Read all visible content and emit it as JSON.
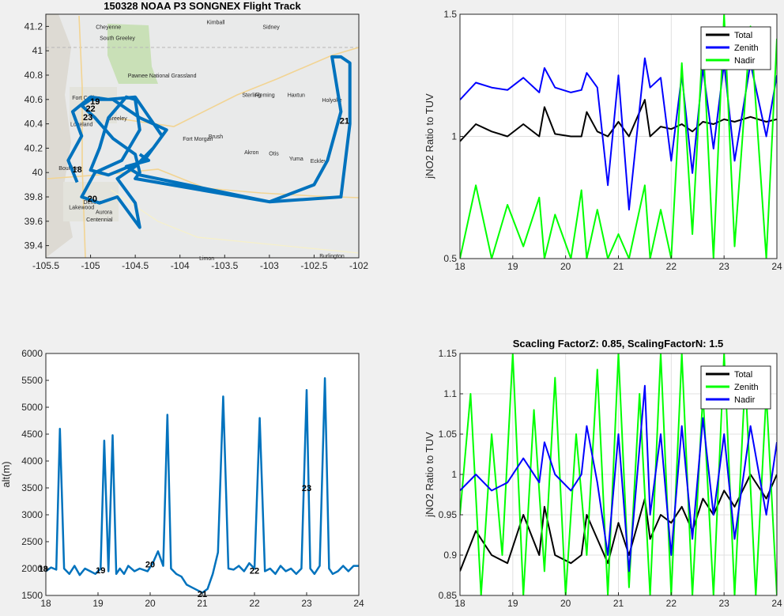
{
  "figure": {
    "map_panel": {
      "title": "150328 NOAA P3 SONGNEX Flight Track",
      "x_ticks": [
        "-105.5",
        "-105",
        "-104.5",
        "-104",
        "-103.5",
        "-103",
        "-102.5",
        "-102"
      ],
      "y_ticks": [
        "41.2",
        "41",
        "40.8",
        "40.6",
        "40.4",
        "40.2",
        "40",
        "39.8",
        "39.6",
        "39.4"
      ],
      "xlim": [
        -105.5,
        -102.0
      ],
      "ylim": [
        39.3,
        41.3
      ],
      "track_color": "#0072BD",
      "hour_markers": [
        {
          "label": "18",
          "lon": -105.15,
          "lat": 40.0
        },
        {
          "label": "19",
          "lon": -104.95,
          "lat": 40.56
        },
        {
          "label": "22",
          "lon": -105.0,
          "lat": 40.5
        },
        {
          "label": "23",
          "lon": -105.03,
          "lat": 40.43
        },
        {
          "label": "20",
          "lon": -104.98,
          "lat": 39.76
        },
        {
          "label": "21",
          "lon": -102.16,
          "lat": 40.4
        }
      ],
      "map_place_labels": [
        "Cheyenne",
        "South Greeley",
        "Fort Collins",
        "Loveland",
        "Greeley",
        "Boulder",
        "Denver",
        "Lakewood",
        "Aurora",
        "Centennial",
        "Sterling",
        "Pawnee National Grassland",
        "Fort Morgan",
        "Brush",
        "Akron",
        "Otis",
        "Yuma",
        "Eckley",
        "Holyoke",
        "Haxtun",
        "Fleming",
        "Sidney",
        "Limon",
        "Burlington",
        "Kimball"
      ]
    },
    "alt_panel": {
      "ylabel": "alt(m)",
      "x_ticks": [
        "18",
        "19",
        "20",
        "21",
        "22",
        "23",
        "24"
      ],
      "y_ticks": [
        "6000",
        "5500",
        "5000",
        "4500",
        "4000",
        "3500",
        "3000",
        "2500",
        "2000",
        "1500"
      ],
      "hour_markers": [
        {
          "label": "18",
          "x": 17.95,
          "y": 2000
        },
        {
          "label": "19",
          "x": 19.05,
          "y": 1970
        },
        {
          "label": "20",
          "x": 20.0,
          "y": 2080
        },
        {
          "label": "21",
          "x": 21.0,
          "y": 1530
        },
        {
          "label": "22",
          "x": 22.0,
          "y": 1960
        },
        {
          "label": "23",
          "x": 23.0,
          "y": 3500
        }
      ]
    },
    "ratio_panel_top": {
      "ylabel": "jNO2 Ratio to TUV",
      "x_ticks": [
        "18",
        "19",
        "20",
        "21",
        "22",
        "23",
        "24"
      ],
      "y_ticks": [
        "1.5",
        "1",
        "0.5"
      ],
      "legend": [
        "Total",
        "Zenith",
        "Nadir"
      ]
    },
    "ratio_panel_bottom": {
      "title": "Scacling FactorZ: 0.85, ScalingFactorN: 1.5",
      "ylabel": "jNO2 Ratio to TUV",
      "x_ticks": [
        "18",
        "19",
        "20",
        "21",
        "22",
        "23",
        "24"
      ],
      "y_ticks": [
        "1.15",
        "1.1",
        "1.05",
        "1",
        "0.95",
        "0.9",
        "0.85"
      ],
      "legend": [
        "Total",
        "Zenith",
        "Nadir"
      ]
    }
  },
  "chart_data": [
    {
      "type": "line",
      "title": "150328 NOAA P3 SONGNEX Flight Track",
      "xlabel": "",
      "ylabel": "",
      "xlim": [
        -105.5,
        -102.0
      ],
      "ylim": [
        39.3,
        41.3
      ],
      "grid": false,
      "series": [
        {
          "x": [
            -105.15,
            -105.25,
            -105.1,
            -105.2,
            -105.0,
            -104.8,
            -104.5,
            -104.2,
            -104.4,
            -104.8,
            -105.0,
            -104.9,
            -104.8,
            -104.6,
            -104.5,
            -104.45,
            -104.65,
            -104.95,
            -105.1,
            -104.9,
            -104.7,
            -104.45,
            -104.5,
            -104.7,
            -104.5,
            -104.3,
            -104.15,
            -104.3,
            -104.45,
            -104.55,
            -104.75,
            -105.0,
            -105.1,
            -104.95,
            -104.75,
            -104.5,
            -104.45,
            -104.5,
            -103.0,
            -102.2,
            -102.1,
            -102.1,
            -102.2,
            -102.3,
            -102.2,
            -102.35,
            -102.5,
            -103.0,
            -104.45,
            -104.6,
            -104.35,
            -104.45
          ],
          "y": [
            39.92,
            40.1,
            40.3,
            40.5,
            40.62,
            40.6,
            40.62,
            40.3,
            40.1,
            39.98,
            40.02,
            40.2,
            40.45,
            40.62,
            40.6,
            40.35,
            40.1,
            40.0,
            39.8,
            39.75,
            39.8,
            39.55,
            39.75,
            39.95,
            40.05,
            40.2,
            40.35,
            40.4,
            40.45,
            40.5,
            40.6,
            40.6,
            40.55,
            40.45,
            40.28,
            40.15,
            40.0,
            39.95,
            39.76,
            39.8,
            40.4,
            40.9,
            40.95,
            40.95,
            40.5,
            40.1,
            39.9,
            39.76,
            39.98,
            40.05,
            40.1,
            40.15
          ]
        }
      ]
    },
    {
      "type": "line",
      "xlabel": "",
      "ylabel": "alt(m)",
      "xlim": [
        18,
        24
      ],
      "ylim": [
        1500,
        6000
      ],
      "grid": false,
      "series": [
        {
          "x": [
            18.0,
            18.1,
            18.2,
            18.27,
            18.35,
            18.45,
            18.55,
            18.65,
            18.75,
            18.85,
            18.95,
            19.05,
            19.12,
            19.2,
            19.28,
            19.35,
            19.42,
            19.5,
            19.58,
            19.7,
            19.8,
            19.95,
            20.05,
            20.15,
            20.25,
            20.33,
            20.4,
            20.5,
            20.6,
            20.7,
            20.8,
            20.9,
            21.0,
            21.1,
            21.2,
            21.3,
            21.4,
            21.5,
            21.6,
            21.7,
            21.8,
            21.9,
            22.0,
            22.1,
            22.2,
            22.3,
            22.4,
            22.5,
            22.6,
            22.7,
            22.8,
            22.9,
            23.0,
            23.07,
            23.15,
            23.25,
            23.35,
            23.43,
            23.5,
            23.6,
            23.7,
            23.8,
            23.9,
            24.0
          ],
          "y": [
            1950,
            2020,
            1980,
            4600,
            2000,
            1900,
            2050,
            1880,
            2000,
            1950,
            1900,
            2000,
            4380,
            1950,
            4480,
            1900,
            2000,
            1900,
            2050,
            1950,
            2000,
            1950,
            2100,
            2320,
            2050,
            4860,
            2000,
            1900,
            1850,
            1700,
            1650,
            1600,
            1550,
            1620,
            1900,
            2300,
            5200,
            2000,
            1980,
            2050,
            1950,
            2100,
            2000,
            4800,
            1950,
            2000,
            1900,
            2050,
            1950,
            2000,
            1900,
            2000,
            5320,
            2000,
            1900,
            2050,
            5540,
            2000,
            1900,
            1950,
            2050,
            1950,
            2050,
            2050
          ]
        }
      ]
    },
    {
      "type": "line",
      "xlabel": "",
      "ylabel": "jNO2 Ratio to TUV",
      "xlim": [
        18,
        24
      ],
      "ylim": [
        0.5,
        1.5
      ],
      "grid": true,
      "legend_position": "top-right",
      "colors": {
        "Total": "#000000",
        "Zenith": "#0000ff",
        "Nadir": "#00ff00"
      },
      "series": [
        {
          "name": "Total",
          "x": [
            18,
            18.3,
            18.6,
            18.9,
            19.2,
            19.5,
            19.6,
            19.8,
            20.1,
            20.3,
            20.4,
            20.6,
            20.8,
            21,
            21.2,
            21.5,
            21.6,
            21.8,
            22,
            22.2,
            22.4,
            22.6,
            22.8,
            23,
            23.2,
            23.5,
            23.8,
            24
          ],
          "y": [
            0.98,
            1.05,
            1.02,
            1.0,
            1.05,
            1.0,
            1.12,
            1.01,
            1.0,
            1.0,
            1.1,
            1.02,
            1.0,
            1.06,
            1.0,
            1.15,
            1.0,
            1.04,
            1.03,
            1.05,
            1.02,
            1.06,
            1.05,
            1.07,
            1.06,
            1.08,
            1.06,
            1.07
          ]
        },
        {
          "name": "Zenith",
          "x": [
            18,
            18.3,
            18.6,
            18.9,
            19.2,
            19.5,
            19.6,
            19.8,
            20.1,
            20.3,
            20.4,
            20.6,
            20.8,
            21,
            21.2,
            21.5,
            21.6,
            21.8,
            22,
            22.2,
            22.4,
            22.6,
            22.8,
            23,
            23.2,
            23.5,
            23.8,
            24
          ],
          "y": [
            1.15,
            1.22,
            1.2,
            1.19,
            1.24,
            1.18,
            1.28,
            1.2,
            1.18,
            1.19,
            1.26,
            1.2,
            0.8,
            1.25,
            0.7,
            1.32,
            1.2,
            1.24,
            0.9,
            1.25,
            0.85,
            1.28,
            0.95,
            1.3,
            0.9,
            1.3,
            1.0,
            1.25
          ]
        },
        {
          "name": "Nadir",
          "x": [
            18,
            18.3,
            18.6,
            18.9,
            19.2,
            19.5,
            19.6,
            19.8,
            20.1,
            20.3,
            20.4,
            20.6,
            20.8,
            21,
            21.2,
            21.5,
            21.6,
            21.8,
            22,
            22.2,
            22.4,
            22.6,
            22.8,
            23,
            23.2,
            23.5,
            23.8,
            24
          ],
          "y": [
            0.5,
            0.8,
            0.5,
            0.72,
            0.55,
            0.75,
            0.5,
            0.68,
            0.5,
            0.78,
            0.5,
            0.7,
            0.5,
            0.6,
            0.5,
            0.8,
            0.5,
            0.7,
            0.5,
            1.3,
            0.6,
            1.4,
            0.5,
            1.5,
            0.55,
            1.45,
            0.5,
            1.4
          ]
        }
      ]
    },
    {
      "type": "line",
      "title": "Scacling FactorZ: 0.85, ScalingFactorN: 1.5",
      "xlabel": "",
      "ylabel": "jNO2 Ratio to TUV",
      "xlim": [
        18,
        24
      ],
      "ylim": [
        0.85,
        1.15
      ],
      "grid": true,
      "legend_position": "top-right",
      "colors": {
        "Total": "#000000",
        "Zenith": "#00ff00",
        "Nadir": "#0000ff"
      },
      "series": [
        {
          "name": "Total",
          "x": [
            18,
            18.3,
            18.6,
            18.9,
            19.2,
            19.5,
            19.6,
            19.8,
            20.1,
            20.3,
            20.4,
            20.6,
            20.8,
            21,
            21.2,
            21.5,
            21.6,
            21.8,
            22,
            22.2,
            22.4,
            22.6,
            22.8,
            23,
            23.2,
            23.5,
            23.8,
            24
          ],
          "y": [
            0.88,
            0.93,
            0.9,
            0.89,
            0.95,
            0.9,
            0.96,
            0.9,
            0.89,
            0.9,
            0.95,
            0.92,
            0.89,
            0.94,
            0.9,
            0.97,
            0.92,
            0.95,
            0.94,
            0.96,
            0.93,
            0.97,
            0.95,
            0.98,
            0.96,
            1.0,
            0.97,
            1.0
          ]
        },
        {
          "name": "Zenith",
          "x": [
            18,
            18.2,
            18.4,
            18.6,
            18.8,
            19,
            19.2,
            19.4,
            19.6,
            19.8,
            20,
            20.2,
            20.4,
            20.6,
            20.8,
            21,
            21.2,
            21.4,
            21.6,
            21.8,
            22,
            22.2,
            22.4,
            22.6,
            22.8,
            23,
            23.2,
            23.4,
            23.6,
            23.8,
            24
          ],
          "y": [
            0.95,
            1.1,
            0.85,
            1.05,
            0.9,
            1.15,
            0.85,
            1.08,
            0.88,
            1.12,
            0.85,
            1.05,
            0.9,
            1.13,
            0.85,
            1.15,
            0.86,
            1.1,
            0.85,
            1.15,
            0.85,
            1.15,
            0.85,
            1.1,
            0.85,
            1.15,
            0.85,
            1.12,
            0.85,
            1.1,
            0.85
          ]
        },
        {
          "name": "Nadir",
          "x": [
            18,
            18.3,
            18.6,
            18.9,
            19.2,
            19.5,
            19.6,
            19.8,
            20.1,
            20.3,
            20.4,
            20.6,
            20.8,
            21,
            21.2,
            21.5,
            21.6,
            21.8,
            22,
            22.2,
            22.4,
            22.6,
            22.8,
            23,
            23.2,
            23.5,
            23.8,
            24
          ],
          "y": [
            0.98,
            1.0,
            0.98,
            0.99,
            1.02,
            0.99,
            1.04,
            1.0,
            0.98,
            1.0,
            1.06,
            0.99,
            0.9,
            1.05,
            0.88,
            1.11,
            0.95,
            1.05,
            0.9,
            1.06,
            0.92,
            1.07,
            0.95,
            1.05,
            0.92,
            1.06,
            0.95,
            1.04
          ]
        }
      ]
    }
  ]
}
